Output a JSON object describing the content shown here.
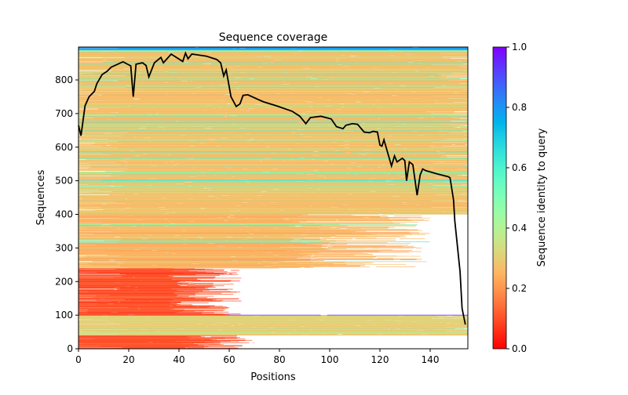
{
  "chart_data": {
    "type": "heatmap",
    "title": "Sequence coverage",
    "xlabel": "Positions",
    "ylabel": "Sequences",
    "xlim": [
      0,
      155
    ],
    "ylim": [
      0,
      898
    ],
    "xticks": [
      0,
      20,
      40,
      60,
      80,
      100,
      120,
      140
    ],
    "yticks": [
      0,
      100,
      200,
      300,
      400,
      500,
      600,
      700,
      800
    ],
    "colorbar": {
      "label": "Sequence identity to query",
      "range": [
        0,
        1
      ],
      "ticks": [
        "0.0",
        "0.2",
        "0.4",
        "0.6",
        "0.8",
        "1.0"
      ],
      "colormap": "rainbow_r"
    },
    "row_groups": [
      {
        "rows": [
          0,
          40
        ],
        "identity": 0.1,
        "coverage_end": 70
      },
      {
        "rows": [
          40,
          100
        ],
        "identity": 0.3,
        "coverage_end": 150
      },
      {
        "rows": [
          100,
          101
        ],
        "identity": 0.95,
        "coverage_end": 155
      },
      {
        "rows": [
          101,
          240
        ],
        "identity": 0.1,
        "coverage_end": 65
      },
      {
        "rows": [
          240,
          400
        ],
        "identity": 0.25,
        "coverage_end": 140
      },
      {
        "rows": [
          400,
          890
        ],
        "identity": 0.27,
        "coverage_end": 155
      },
      {
        "rows": [
          890,
          898
        ],
        "identity": 0.8,
        "coverage_end": 155
      }
    ],
    "coverage_line": {
      "color": "#000000",
      "x": [
        0,
        1,
        2.6,
        4.2,
        6.3,
        7.3,
        9.4,
        11.4,
        13,
        17.7,
        20.8,
        21.8,
        22.9,
        25.5,
        26.9,
        28,
        30.2,
        32.8,
        33.8,
        36.9,
        41.5,
        42.6,
        43.6,
        45.1,
        50.8,
        55,
        56.6,
        57.8,
        58.8,
        60.7,
        62.8,
        64.3,
        65.5,
        67.4,
        71.5,
        73.6,
        78.8,
        85,
        88.1,
        90.5,
        92.3,
        96.5,
        100.6,
        102.7,
        105.3,
        106.4,
        109,
        111.1,
        113.7,
        115.8,
        117.3,
        119,
        120,
        120.8,
        121.6,
        124.6,
        125.8,
        126.8,
        128.9,
        129.9,
        130.6,
        131.7,
        133.1,
        134.8,
        136,
        137,
        138.3,
        142.5,
        147.2,
        147.9,
        149.3,
        149.8,
        151.9,
        152.7,
        154
      ],
      "y": [
        665,
        634,
        723,
        750,
        766,
        789,
        816,
        826,
        838,
        854,
        842,
        750,
        847,
        851,
        843,
        809,
        851,
        867,
        851,
        877,
        855,
        880,
        863,
        877,
        871,
        861,
        851,
        812,
        830,
        750,
        721,
        729,
        754,
        756,
        742,
        735,
        723,
        707,
        692,
        670,
        688,
        692,
        684,
        661,
        655,
        665,
        670,
        668,
        645,
        643,
        647,
        645,
        606,
        603,
        622,
        544,
        574,
        556,
        567,
        560,
        500,
        556,
        548,
        457,
        517,
        535,
        530,
        521,
        512,
        509,
        443,
        381,
        229,
        120,
        72
      ]
    }
  }
}
